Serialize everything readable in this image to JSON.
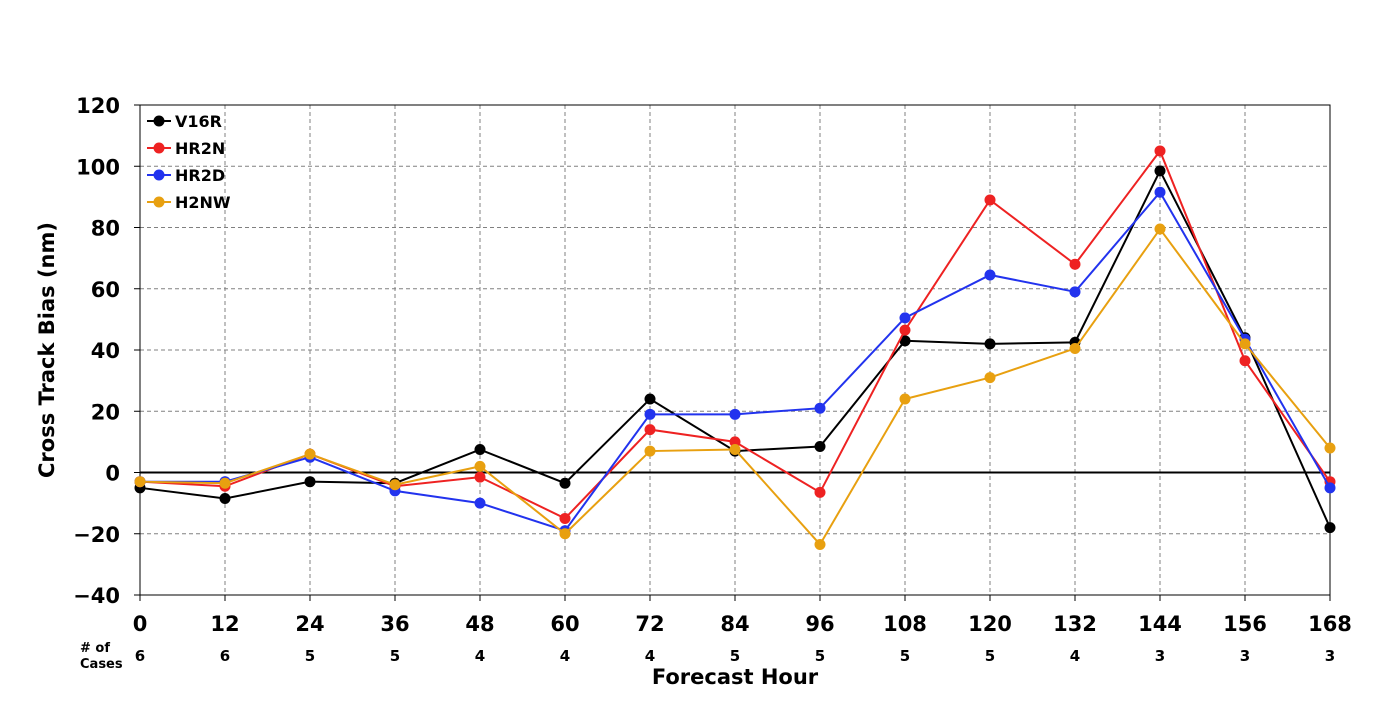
{
  "chart_data": {
    "type": "line",
    "title": "",
    "xlabel": "Forecast Hour",
    "ylabel": "Cross Track Bias (nm)",
    "x": [
      0,
      12,
      24,
      36,
      48,
      60,
      72,
      84,
      96,
      108,
      120,
      132,
      144,
      156,
      168
    ],
    "x_tick_labels": [
      "0",
      "12",
      "24",
      "36",
      "48",
      "60",
      "72",
      "84",
      "96",
      "108",
      "120",
      "132",
      "144",
      "156",
      "168"
    ],
    "xlim": [
      0,
      168
    ],
    "ylim": [
      -40,
      120
    ],
    "y_ticks": [
      -40,
      -20,
      0,
      20,
      40,
      60,
      80,
      100,
      120
    ],
    "y_tick_labels": [
      "−40",
      "−20",
      "0",
      "20",
      "40",
      "60",
      "80",
      "100",
      "120"
    ],
    "grid": true,
    "grid_style": "dashed",
    "zero_line": true,
    "legend_position": "top-left",
    "series": [
      {
        "name": "V16R",
        "color": "#000000",
        "values": [
          -5,
          -8.5,
          -3,
          -3.5,
          7.5,
          -3.5,
          24,
          7,
          8.5,
          43,
          42,
          42.5,
          98.5,
          44,
          -18
        ]
      },
      {
        "name": "HR2N",
        "color": "#ee2222",
        "values": [
          -3,
          -4.5,
          6,
          -4.5,
          -1.5,
          -15,
          14,
          10,
          -6.5,
          46.5,
          89,
          68,
          105,
          36.5,
          -3
        ]
      },
      {
        "name": "HR2D",
        "color": "#2233ee",
        "values": [
          -3,
          -3,
          5,
          -6,
          -10,
          -19,
          19,
          19,
          21,
          50.5,
          64.5,
          59,
          91.5,
          43.5,
          -5
        ]
      },
      {
        "name": "H2NW",
        "color": "#e8a010",
        "values": [
          -3,
          -3.5,
          6,
          -4,
          2,
          -20,
          7,
          7.5,
          -23.5,
          24,
          31,
          40.5,
          79.5,
          42,
          8
        ]
      }
    ],
    "cases": {
      "header": [
        "# of",
        "Cases"
      ],
      "values": [
        "6",
        "6",
        "5",
        "5",
        "4",
        "4",
        "4",
        "5",
        "5",
        "5",
        "5",
        "4",
        "3",
        "3",
        "3"
      ]
    }
  }
}
